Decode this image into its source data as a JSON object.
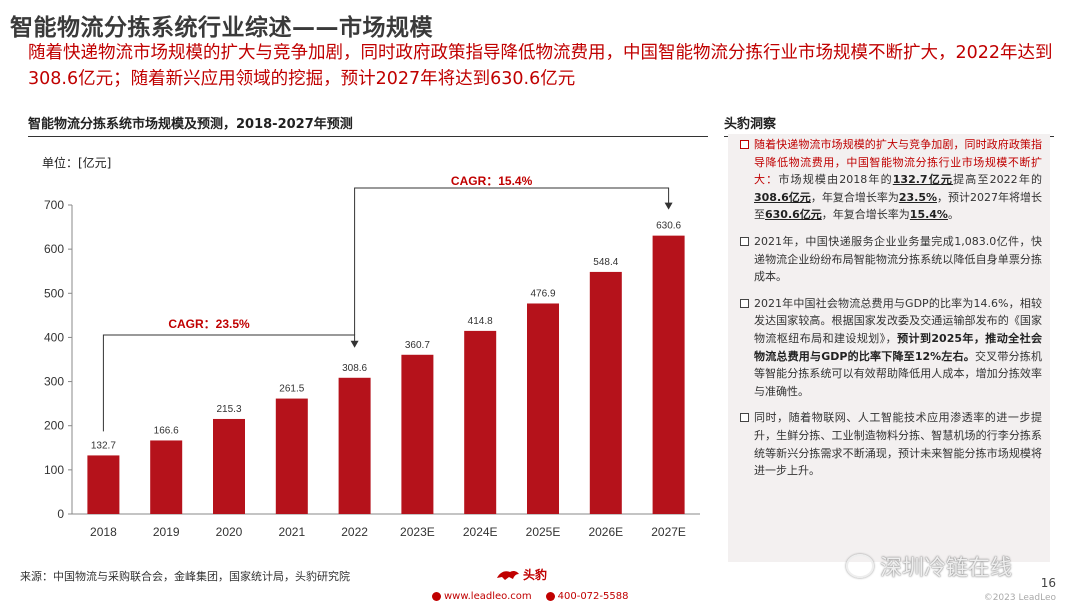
{
  "header": {
    "title": "智能物流分拣系统行业综述——市场规模",
    "subtitle": "随着快递物流市场规模的扩大与竞争加剧，同时政府政策指导降低物流费用，中国智能物流分拣行业市场规模不断扩大，2022年达到308.6亿元；随着新兴应用领域的挖掘，预计2027年将达到630.6亿元"
  },
  "chart_section": {
    "heading": "智能物流分拣系统市场规模及预测，2018-2027年预测",
    "unit_label": "单位：[亿元]"
  },
  "chart_data": {
    "type": "bar",
    "title": "智能物流分拣系统市场规模及预测，2018-2027年预测",
    "unit": "单位：[亿元]",
    "categories": [
      "2018",
      "2019",
      "2020",
      "2021",
      "2022",
      "2023E",
      "2024E",
      "2025E",
      "2026E",
      "2027E"
    ],
    "values": [
      132.7,
      166.6,
      215.3,
      261.5,
      308.6,
      360.7,
      414.8,
      476.9,
      548.4,
      630.6
    ],
    "value_labels": [
      "132.7",
      "166.6",
      "215.3",
      "261.5",
      "308.6",
      "360.7",
      "414.8",
      "476.9",
      "548.4",
      "630.6"
    ],
    "ylim": [
      0,
      700
    ],
    "yticks": [
      0,
      100,
      200,
      300,
      400,
      500,
      600,
      700
    ],
    "grid": false,
    "bar_color": "#b5121b",
    "cagr_annotations": [
      {
        "label": "CAGR：23.5%",
        "from": "2018",
        "to": "2022"
      },
      {
        "label": "CAGR：15.4%",
        "from": "2022",
        "to": "2027E"
      }
    ]
  },
  "insights": {
    "heading": "头豹洞察",
    "bullets": [
      {
        "marker": "red",
        "segments": [
          {
            "text": "随着快递物流市场规模的扩大与竞争加剧，同时政府政策指导降低物流费用，中国智能物流分拣行业市场规模不断扩大：",
            "style": "red"
          },
          {
            "text": "市场规模由2018年的",
            "style": "normal"
          },
          {
            "text": "132.7亿元",
            "style": "under"
          },
          {
            "text": "提高至2022年的",
            "style": "normal"
          },
          {
            "text": "308.6亿元",
            "style": "under"
          },
          {
            "text": "，年复合增长率为",
            "style": "normal"
          },
          {
            "text": "23.5%",
            "style": "under"
          },
          {
            "text": "，预计2027年将增长至",
            "style": "normal"
          },
          {
            "text": "630.6亿元",
            "style": "under"
          },
          {
            "text": "，年复合增长率为",
            "style": "normal"
          },
          {
            "text": "15.4%",
            "style": "under"
          },
          {
            "text": "。",
            "style": "normal"
          }
        ]
      },
      {
        "marker": "dark",
        "segments": [
          {
            "text": "2021年，中国快递服务企业业务量完成1,083.0亿件，快递物流企业纷纷布局智能物流分拣系统以降低自身单票分拣成本。",
            "style": "normal"
          }
        ]
      },
      {
        "marker": "dark",
        "segments": [
          {
            "text": "2021年中国社会物流总费用与GDP的比率为14.6%，相较发达国家较高。根据国家发改委及交通运输部发布的《国家物流枢纽布局和建设规划》，",
            "style": "normal"
          },
          {
            "text": "预计到2025年，推动全社会物流总费用与GDP的比率下降至12%左右。",
            "style": "bold"
          },
          {
            "text": "交叉带分拣机等智能分拣系统可以有效帮助降低用人成本，增加分拣效率与准确性。",
            "style": "normal"
          }
        ]
      },
      {
        "marker": "dark",
        "segments": [
          {
            "text": "同时，随着物联网、人工智能技术应用渗透率的进一步提升，生鲜分拣、工业制造物料分拣、智慧机场的行李分拣系统等新兴分拣需求不断涌现，预计未来智能分拣市场规模将进一步上升。",
            "style": "normal"
          }
        ]
      }
    ]
  },
  "footer": {
    "source": "来源：中国物流与采购联合会，金峰集团，国家统计局，头豹研究院",
    "logo_text": "头豹",
    "website": "www.leadleo.com",
    "phone": "400-072-5588",
    "page_number": "16",
    "copyright": "©2023 LeadLeo",
    "watermark": "深圳冷链在线"
  },
  "colors": {
    "accent_red": "#c00000",
    "bar_red": "#b5121b",
    "panel_bg": "#f3f0f0"
  }
}
